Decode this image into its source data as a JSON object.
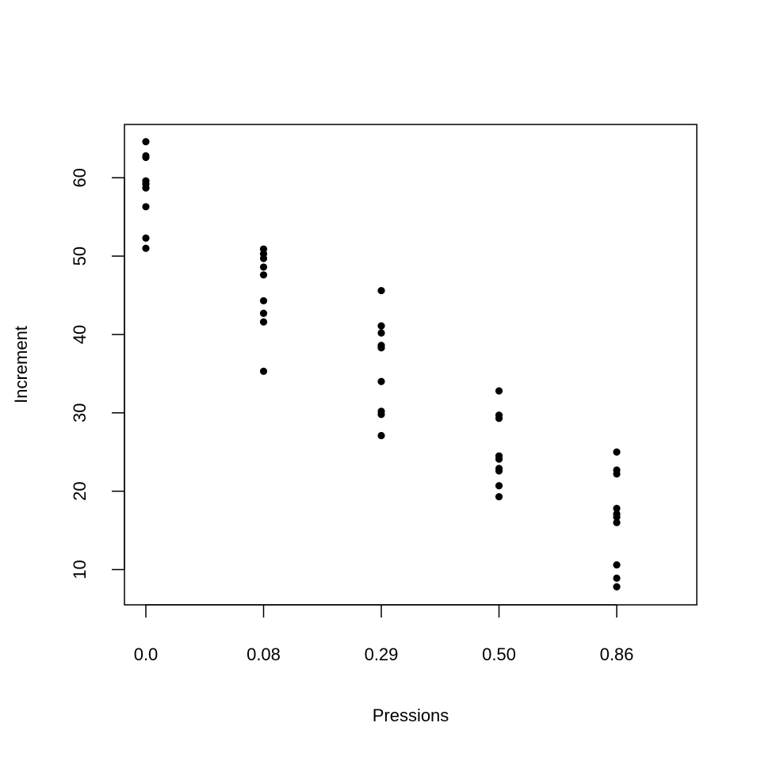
{
  "chart_data": {
    "type": "scatter",
    "title": "",
    "xlabel": "Pressions",
    "ylabel": "Increment",
    "x_categories": [
      "0.0",
      "0.08",
      "0.29",
      "0.50",
      "0.86"
    ],
    "x_axis_type": "categorical",
    "ylim": [
      5.5,
      66.8
    ],
    "y_ticks": [
      10,
      20,
      30,
      40,
      50,
      60
    ],
    "grid": false,
    "legend": "none",
    "point_color": "#000000",
    "series": [
      {
        "points": [
          {
            "x": "0.0",
            "y": 64.6
          },
          {
            "x": "0.0",
            "y": 62.8
          },
          {
            "x": "0.0",
            "y": 62.6
          },
          {
            "x": "0.0",
            "y": 59.6
          },
          {
            "x": "0.0",
            "y": 59.2
          },
          {
            "x": "0.0",
            "y": 58.7
          },
          {
            "x": "0.0",
            "y": 56.3
          },
          {
            "x": "0.0",
            "y": 52.3
          },
          {
            "x": "0.0",
            "y": 51.0
          },
          {
            "x": "0.08",
            "y": 50.9
          },
          {
            "x": "0.08",
            "y": 50.3
          },
          {
            "x": "0.08",
            "y": 49.7
          },
          {
            "x": "0.08",
            "y": 48.6
          },
          {
            "x": "0.08",
            "y": 47.6
          },
          {
            "x": "0.08",
            "y": 44.3
          },
          {
            "x": "0.08",
            "y": 42.7
          },
          {
            "x": "0.08",
            "y": 41.6
          },
          {
            "x": "0.08",
            "y": 35.3
          },
          {
            "x": "0.29",
            "y": 45.6
          },
          {
            "x": "0.29",
            "y": 41.1
          },
          {
            "x": "0.29",
            "y": 40.2
          },
          {
            "x": "0.29",
            "y": 38.6
          },
          {
            "x": "0.29",
            "y": 38.3
          },
          {
            "x": "0.29",
            "y": 34.0
          },
          {
            "x": "0.29",
            "y": 30.2
          },
          {
            "x": "0.29",
            "y": 29.8
          },
          {
            "x": "0.29",
            "y": 27.1
          },
          {
            "x": "0.50",
            "y": 32.8
          },
          {
            "x": "0.50",
            "y": 29.7
          },
          {
            "x": "0.50",
            "y": 29.3
          },
          {
            "x": "0.50",
            "y": 24.5
          },
          {
            "x": "0.50",
            "y": 24.1
          },
          {
            "x": "0.50",
            "y": 22.9
          },
          {
            "x": "0.50",
            "y": 22.6
          },
          {
            "x": "0.50",
            "y": 20.7
          },
          {
            "x": "0.50",
            "y": 19.3
          },
          {
            "x": "0.86",
            "y": 25.0
          },
          {
            "x": "0.86",
            "y": 22.7
          },
          {
            "x": "0.86",
            "y": 22.2
          },
          {
            "x": "0.86",
            "y": 17.8
          },
          {
            "x": "0.86",
            "y": 17.1
          },
          {
            "x": "0.86",
            "y": 16.7
          },
          {
            "x": "0.86",
            "y": 16.0
          },
          {
            "x": "0.86",
            "y": 10.6
          },
          {
            "x": "0.86",
            "y": 8.9
          },
          {
            "x": "0.86",
            "y": 7.8
          }
        ]
      }
    ]
  }
}
